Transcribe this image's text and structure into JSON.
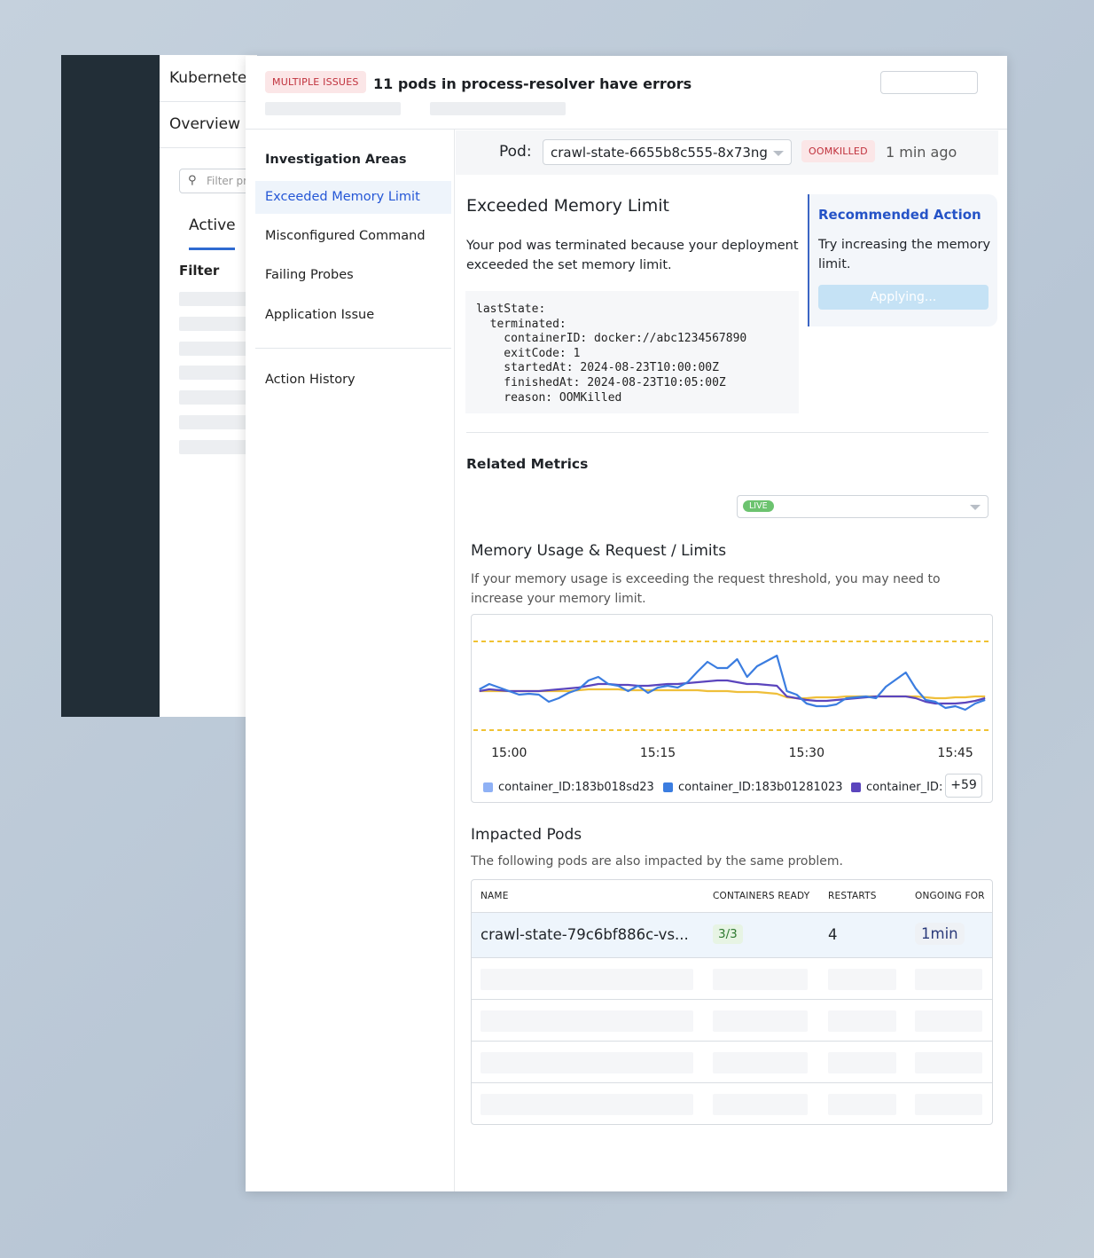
{
  "background_app": {
    "title": "Kubernete",
    "nav": "Overview",
    "filter_placeholder": "Filter pr",
    "tab_active": "Active",
    "filter_label": "Filter"
  },
  "header": {
    "badge": "MULTIPLE ISSUES",
    "title": "11 pods in process-resolver have errors"
  },
  "investigation": {
    "heading": "Investigation Areas",
    "items": [
      {
        "label": "Exceeded Memory Limit",
        "active": true
      },
      {
        "label": "Misconfigured Command"
      },
      {
        "label": "Failing Probes"
      },
      {
        "label": "Application Issue"
      }
    ],
    "history": "Action History"
  },
  "pod": {
    "label": "Pod:",
    "selected": "crawl-state-6655b8c555-8x73ng",
    "status": "OOMKILLED",
    "time": "1 min ago"
  },
  "issue": {
    "title": "Exceeded Memory Limit",
    "description": "Your pod was terminated because your deployment exceeded the set memory limit.",
    "code": "lastState:\n  terminated:\n    containerID: docker://abc1234567890\n    exitCode: 1\n    startedAt: 2024-08-23T10:00:00Z\n    finishedAt: 2024-08-23T10:05:00Z\n    reason: OOMKilled"
  },
  "recommended": {
    "title": "Recommended Action",
    "text": "Try increasing the memory limit.",
    "button": "Applying..."
  },
  "metrics": {
    "heading": "Related Metrics",
    "live_badge": "LIVE",
    "chart_title": "Memory Usage & Request / Limits",
    "chart_desc": "If your memory usage is exceeding the request threshold, you may need to increase your memory limit.",
    "more_count": "+59"
  },
  "chart_data": {
    "type": "line",
    "grid": false,
    "legend_placement": "bottom",
    "xticks": [
      "15:00",
      "15:15",
      "15:30",
      "15:45"
    ],
    "x_range": [
      "14:56",
      "15:49"
    ],
    "ylim": [
      0,
      100
    ],
    "threshold_lines": [
      {
        "value": 100,
        "color": "#f0c232",
        "style": "dashed"
      },
      {
        "value": 0,
        "color": "#f0c232",
        "style": "dashed"
      }
    ],
    "x": [
      "14:57",
      "14:58",
      "14:59",
      "15:00",
      "15:01",
      "15:02",
      "15:03",
      "15:04",
      "15:05",
      "15:06",
      "15:07",
      "15:08",
      "15:09",
      "15:10",
      "15:11",
      "15:12",
      "15:13",
      "15:14",
      "15:15",
      "15:16",
      "15:17",
      "15:18",
      "15:19",
      "15:20",
      "15:21",
      "15:22",
      "15:23",
      "15:24",
      "15:25",
      "15:26",
      "15:27",
      "15:28",
      "15:29",
      "15:30",
      "15:31",
      "15:32",
      "15:33",
      "15:34",
      "15:35",
      "15:36",
      "15:37",
      "15:38",
      "15:39",
      "15:40",
      "15:41",
      "15:42",
      "15:43",
      "15:44",
      "15:45",
      "15:46",
      "15:47",
      "15:48"
    ],
    "legend": [
      {
        "name": "container_ID:183b018sd23",
        "color": "#8fb1f5"
      },
      {
        "name": "container_ID:183b01281023",
        "color": "#3b7de0"
      },
      {
        "name": "container_ID:",
        "color": "#5b45bd"
      }
    ],
    "series": [
      {
        "color": "#3b7de0",
        "values": [
          46,
          52,
          48,
          44,
          40,
          41,
          40,
          32,
          36,
          42,
          46,
          56,
          60,
          52,
          50,
          44,
          50,
          42,
          48,
          50,
          48,
          54,
          66,
          77,
          70,
          70,
          80,
          60,
          72,
          78,
          84,
          44,
          40,
          30,
          27,
          27,
          29,
          36,
          37,
          38,
          36,
          49,
          57,
          65,
          47,
          34,
          32,
          25,
          27,
          23,
          30,
          34
        ]
      },
      {
        "color": "#5b45bd",
        "values": [
          44,
          46,
          45,
          44,
          44,
          44,
          44,
          45,
          46,
          47,
          48,
          50,
          52,
          52,
          51,
          51,
          50,
          50,
          51,
          52,
          52,
          53,
          54,
          55,
          56,
          56,
          54,
          52,
          52,
          51,
          50,
          38,
          36,
          34,
          33,
          33,
          34,
          35,
          36,
          37,
          38,
          38,
          38,
          38,
          36,
          32,
          30,
          30,
          30,
          31,
          33,
          36
        ]
      },
      {
        "color": "#efbf3a",
        "values": [
          44,
          44,
          44,
          44,
          44,
          44,
          44,
          44,
          44,
          44,
          45,
          46,
          46,
          46,
          46,
          45,
          45,
          45,
          45,
          45,
          45,
          45,
          45,
          44,
          44,
          44,
          43,
          43,
          43,
          42,
          41,
          37,
          36,
          36,
          37,
          37,
          37,
          38,
          38,
          38,
          38,
          38,
          38,
          38,
          38,
          37,
          36,
          36,
          37,
          37,
          38,
          38
        ]
      }
    ]
  },
  "impacted": {
    "heading": "Impacted Pods",
    "desc": "The following pods are also impacted by the same problem.",
    "columns": [
      "NAME",
      "CONTAINERS READY",
      "RESTARTS",
      "ONGOING FOR"
    ],
    "rows": [
      {
        "name": "crawl-state-79c6bf886c-vs...",
        "ready": "3/3",
        "restarts": "4",
        "ongoing": "1min"
      }
    ]
  }
}
